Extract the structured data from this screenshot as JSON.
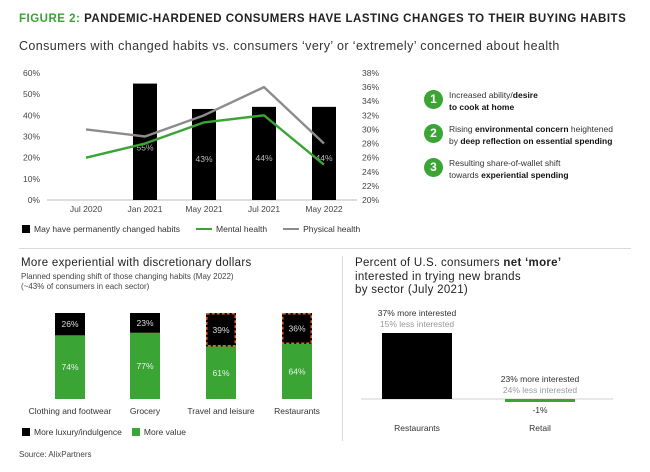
{
  "figure": {
    "label": "FIGURE 2:",
    "title": "PANDEMIC-HARDENED CONSUMERS HAVE LASTING CHANGES TO THEIR BUYING HABITS",
    "subtitle": "Consumers with changed habits vs. consumers ‘very’ or ‘extremely’ concerned about health"
  },
  "key_points": [
    {
      "num": "1",
      "parts": [
        {
          "t": "Increased ability/",
          "b": false
        },
        {
          "t": "desire",
          "b": true
        },
        {
          "t": "to cook at home",
          "b": true,
          "br": true
        }
      ]
    },
    {
      "num": "2",
      "parts": [
        {
          "t": "Rising ",
          "b": false
        },
        {
          "t": "environmental concern",
          "b": true
        },
        {
          "t": " heightened",
          "b": false
        },
        {
          "t": "by ",
          "b": false,
          "br": true
        },
        {
          "t": "deep reflection on essential spending",
          "b": true
        }
      ]
    },
    {
      "num": "3",
      "parts": [
        {
          "t": "Resulting share-of-wallet shift",
          "b": false
        },
        {
          "t": "towards ",
          "b": false,
          "br": true
        },
        {
          "t": "experiential spending",
          "b": true
        }
      ]
    }
  ],
  "colors": {
    "green": "#3aa435",
    "gray": "#8c8c8c",
    "black": "#000000",
    "accent_orange": "#e8602c"
  },
  "chart_data": [
    {
      "type": "bar",
      "title": "Consumers with changed habits vs. consumers ‘very’ or ‘extremely’ concerned about health",
      "categories": [
        "Jul 2020",
        "Jan 2021",
        "May 2021",
        "Jul 2021",
        "May 2022"
      ],
      "left_axis": {
        "ticks": [
          "0%",
          "10%",
          "20%",
          "30%",
          "40%",
          "50%",
          "60%"
        ],
        "ylim": [
          0,
          60
        ]
      },
      "right_axis": {
        "ticks": [
          "20%",
          "22%",
          "24%",
          "26%",
          "28%",
          "30%",
          "32%",
          "34%",
          "36%",
          "38%"
        ],
        "ylim": [
          20,
          38
        ]
      },
      "series": [
        {
          "name": "May have permanently changed habits",
          "type": "bar",
          "axis": "left",
          "values": [
            null,
            55,
            43,
            44,
            44
          ],
          "labels": [
            "",
            "55%",
            "43%",
            "44%",
            "44%"
          ]
        },
        {
          "name": "Mental health",
          "type": "line",
          "axis": "right",
          "values": [
            26,
            28,
            31,
            32,
            25
          ]
        },
        {
          "name": "Physical health",
          "type": "line",
          "axis": "right",
          "values": [
            30,
            29,
            32,
            36,
            28
          ]
        }
      ],
      "legend_position": "bottom"
    },
    {
      "type": "bar",
      "stacked": true,
      "title": "More experiential with discretionary dollars",
      "subtitle": [
        "Planned spending shift of those changing habits (May 2022)",
        "(~43% of consumers in each sector)"
      ],
      "categories": [
        "Clothing and footwear",
        "Grocery",
        "Travel and leisure",
        "Restaurants"
      ],
      "series": [
        {
          "name": "More value",
          "values": [
            74,
            77,
            61,
            64
          ],
          "labels": [
            "74%",
            "77%",
            "61%",
            "64%"
          ]
        },
        {
          "name": "More luxury/indulgence",
          "values": [
            26,
            23,
            39,
            36
          ],
          "labels": [
            "26%",
            "23%",
            "39%",
            "36%"
          ]
        }
      ],
      "highlighted": [
        "Travel and leisure",
        "Restaurants"
      ],
      "legend_position": "bottom"
    },
    {
      "type": "bar",
      "title_parts": [
        {
          "t": "Percent of U.S. consumers ",
          "b": false
        },
        {
          "t": "net ‘more’",
          "b": true
        },
        {
          "t": "interested in trying new brands",
          "b": false,
          "br": true
        },
        {
          "t": "by sector (July 2021)",
          "b": false,
          "br": true
        }
      ],
      "categories": [
        "Restaurants",
        "Retail"
      ],
      "values": [
        22,
        -1
      ],
      "value_labels": [
        "",
        "-1%"
      ],
      "more_labels": [
        "37% more interested",
        "23% more interested"
      ],
      "less_labels": [
        "15% less interested",
        "24% less interested"
      ]
    }
  ],
  "source": "Source: AlixPartners"
}
